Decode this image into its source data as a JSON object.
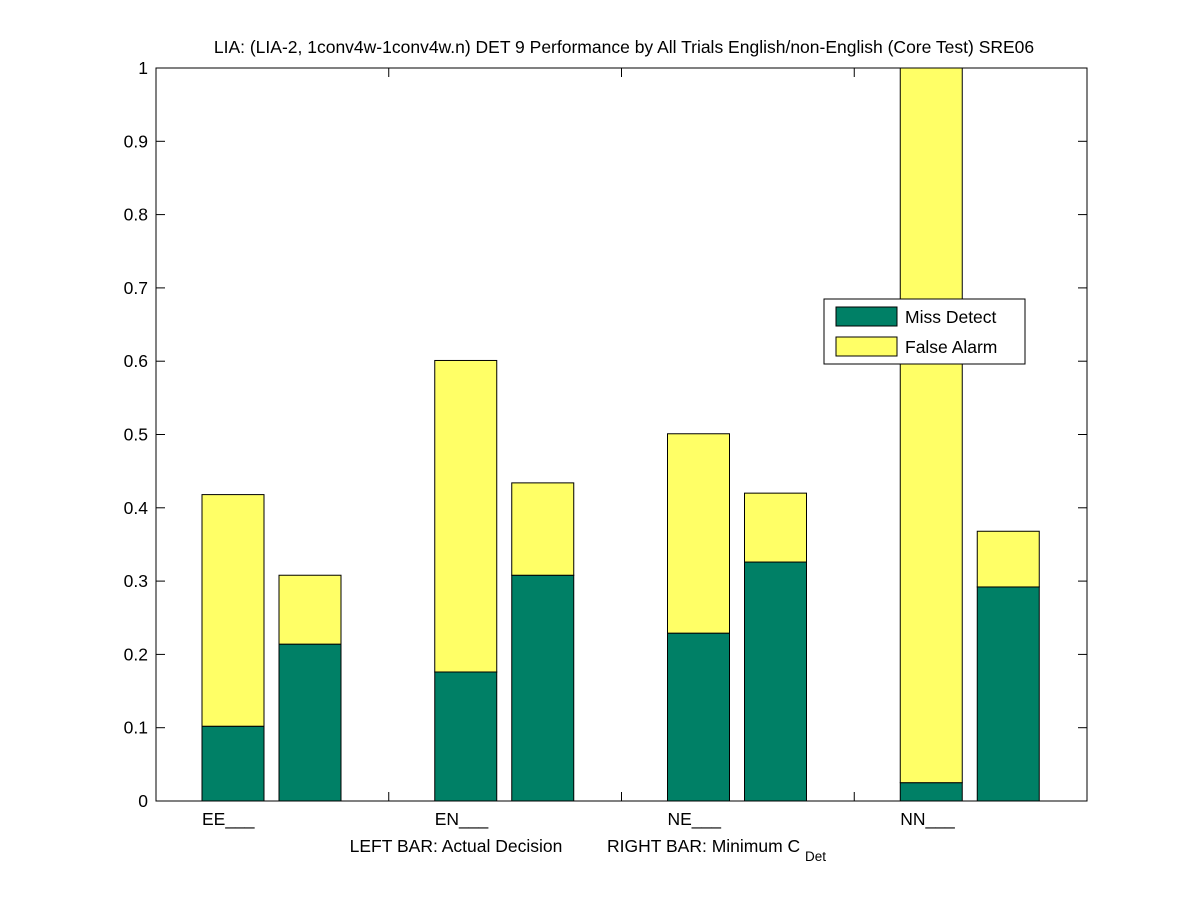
{
  "chart_data": {
    "type": "bar",
    "stacked": true,
    "title": "LIA: (LIA-2, 1conv4w-1conv4w.n) DET 9 Performance by All Trials English/non-English (Core Test) SRE06",
    "categories": [
      "EE___",
      "EN___",
      "NE___",
      "NN___"
    ],
    "xlabel": {
      "left": "LEFT BAR: Actual Decision",
      "right_main": "RIGHT BAR: Minimum C",
      "right_sub": "Det"
    },
    "ylabel": "",
    "ylim": [
      0,
      1
    ],
    "yticks": [
      "0",
      "0.1",
      "0.2",
      "0.3",
      "0.4",
      "0.5",
      "0.6",
      "0.7",
      "0.8",
      "0.9",
      "1"
    ],
    "series": [
      {
        "name": "Miss Detect",
        "color": "#008066",
        "left_bar": [
          0.102,
          0.176,
          0.229,
          0.025
        ],
        "right_bar": [
          0.214,
          0.308,
          0.326,
          0.292
        ]
      },
      {
        "name": "False Alarm",
        "color": "#ffff66",
        "left_bar": [
          0.316,
          0.425,
          0.272,
          0.975
        ],
        "right_bar": [
          0.094,
          0.126,
          0.094,
          0.076
        ]
      }
    ],
    "legend_position": "right, mid-height",
    "grid": false
  }
}
